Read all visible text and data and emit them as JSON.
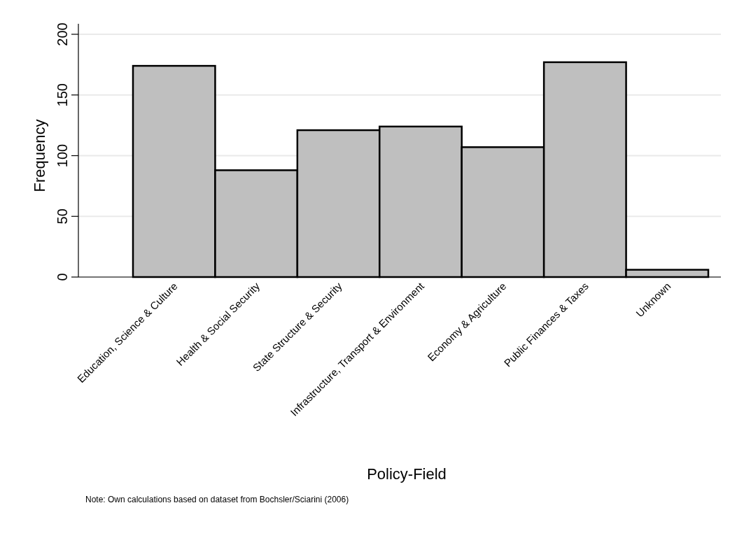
{
  "chart_data": {
    "type": "bar",
    "xlabel": "Policy-Field",
    "ylabel": "Frequency",
    "categories": [
      "Education, Science & Culture",
      "Health & Social Security",
      "State Structure & Security",
      "Infrastructure, Transport & Environment",
      "Economy & Agriculture",
      "Public Finances & Taxes",
      "Unknown"
    ],
    "values": [
      174,
      88,
      121,
      124,
      107,
      177,
      6
    ],
    "color": "#bfbfbf",
    "ylim": [
      0,
      200
    ],
    "yticks": [
      0,
      50,
      100,
      150,
      200
    ],
    "grid": "y",
    "annotations": [
      "Note: Own calculations based on dataset from Bochsler/Sciarini (2006)"
    ]
  }
}
